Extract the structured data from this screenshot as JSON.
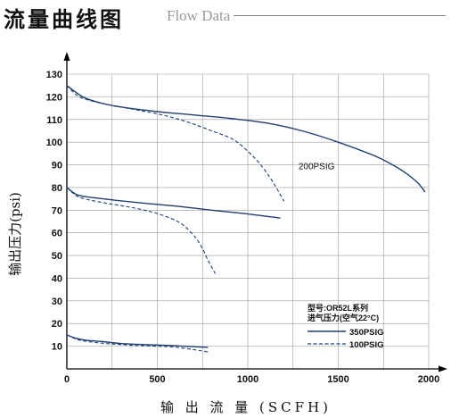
{
  "header": {
    "title_cn": "流量曲线图",
    "title_en": "Flow Data"
  },
  "chart_data": {
    "type": "line",
    "xlabel": "输 出 流 量 (SCFH)",
    "ylabel": "输出压力(psi)",
    "xlim": [
      0,
      2000
    ],
    "ylim": [
      0,
      130
    ],
    "xticks": [
      0,
      500,
      1000,
      1500,
      2000
    ],
    "yticks": [
      10,
      20,
      30,
      40,
      50,
      60,
      70,
      80,
      90,
      100,
      110,
      120,
      130
    ],
    "grid": true,
    "legend": {
      "position": "bottom-right",
      "title_line1": "型号:OR52L系列",
      "title_line2": "进气压力(空气22°C)",
      "entries": [
        {
          "label": "350PSIG",
          "style": "solid"
        },
        {
          "label": "100PSIG",
          "style": "dashed"
        }
      ]
    },
    "annotations": [
      {
        "text": "200PSIG",
        "x": 1280,
        "y": 88
      }
    ],
    "series": [
      {
        "group": "125psi",
        "style": "solid",
        "x": [
          0,
          50,
          100,
          200,
          300,
          500,
          700,
          900,
          1100,
          1300,
          1500,
          1700,
          1800,
          1880,
          1940,
          1980
        ],
        "y": [
          125,
          122,
          119.5,
          117,
          115.5,
          113.5,
          112,
          110.5,
          108.5,
          105,
          100,
          94,
          90,
          86,
          82,
          78
        ]
      },
      {
        "group": "125psi",
        "style": "dashed",
        "x": [
          0,
          50,
          100,
          200,
          300,
          400,
          500,
          600,
          700,
          800,
          900,
          950,
          1000,
          1050,
          1100,
          1150,
          1200
        ],
        "y": [
          125,
          121,
          119,
          117,
          115.5,
          114,
          112.5,
          110.5,
          108,
          105,
          102,
          99.5,
          96,
          92,
          87,
          81,
          74
        ]
      },
      {
        "group": "80psi",
        "style": "solid",
        "x": [
          0,
          50,
          100,
          200,
          400,
          600,
          800,
          1000,
          1180
        ],
        "y": [
          80,
          77,
          76,
          75,
          73.3,
          71.8,
          70,
          68.3,
          66.5
        ]
      },
      {
        "group": "80psi",
        "style": "dashed",
        "x": [
          0,
          50,
          100,
          200,
          300,
          400,
          500,
          600,
          650,
          700,
          720,
          750,
          780,
          800,
          820
        ],
        "y": [
          80,
          76.5,
          75,
          73.3,
          72,
          70.5,
          68.5,
          65.5,
          63,
          59,
          57,
          53,
          48,
          45,
          42
        ]
      },
      {
        "group": "15psi",
        "style": "solid",
        "x": [
          0,
          50,
          100,
          200,
          300,
          400,
          500,
          600,
          700,
          780
        ],
        "y": [
          15,
          13.5,
          12.7,
          12,
          11.2,
          10.8,
          10.5,
          10.2,
          9.8,
          9.5
        ]
      },
      {
        "group": "15psi",
        "style": "dashed",
        "x": [
          0,
          50,
          100,
          200,
          300,
          400,
          500,
          600,
          700,
          780
        ],
        "y": [
          15,
          13.2,
          12.2,
          11.3,
          10.7,
          10.3,
          10,
          9.6,
          8.5,
          7.5
        ]
      }
    ]
  },
  "colors": {
    "curve": "#1f3f73",
    "grid": "#999999",
    "axis": "#000000"
  }
}
